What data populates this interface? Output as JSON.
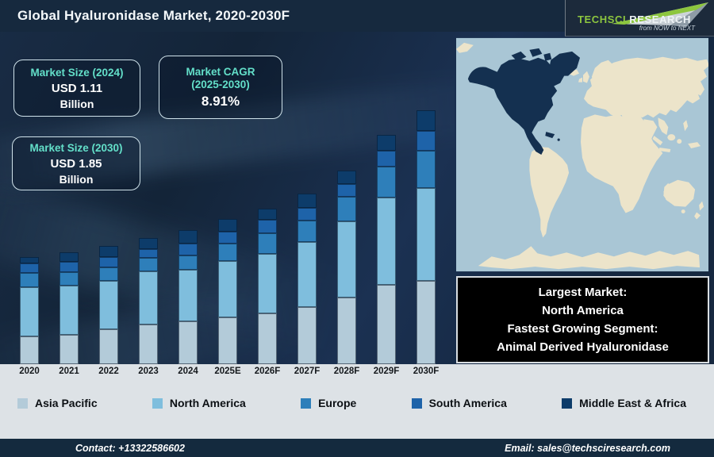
{
  "title": "Global Hyaluronidase Market, 2020-2030F",
  "logo": {
    "brand_part1": "TechSci",
    "brand_part2": "Research",
    "tagline": "from NOW to NEXT"
  },
  "info_boxes": {
    "size_2024": {
      "label": "Market Size (2024)",
      "value": "USD 1.11",
      "unit": "Billion"
    },
    "cagr": {
      "label_line1": "Market CAGR",
      "label_line2": "(2025-2030)",
      "value": "8.91%"
    },
    "size_2030": {
      "label": "Market Size (2030)",
      "value": "USD 1.85",
      "unit": "Billion"
    }
  },
  "highlight_box": {
    "lines": [
      "Largest Market:",
      "North America",
      "Fastest Growing Segment:",
      "Animal Derived Hyaluronidase"
    ]
  },
  "footer": {
    "contact": "Contact: +13322586602",
    "email": "Email: sales@techsciresearch.com"
  },
  "map": {
    "highlight_region": "North America",
    "ocean_color": "#a9c6d5",
    "land_color": "#ece4ca",
    "highlight_color": "#143050"
  },
  "colors": {
    "accent_teal": "#63dfc9",
    "brand_green": "#8dc63f",
    "title_bar": "#16293e",
    "panel_light": "#dde2e6",
    "footer_bar": "#142a3e",
    "highlight_box_bg": "#000000"
  },
  "chart_data": {
    "type": "stacked-bar",
    "title": "Global Hyaluronidase Market, 2020-2030F",
    "categories": [
      "2020",
      "2021",
      "2022",
      "2023",
      "2024",
      "2025E",
      "2026F",
      "2027F",
      "2028F",
      "2029F",
      "2030F"
    ],
    "unit": "relative height (no numeric axis shown on chart)",
    "legend_position": "bottom",
    "grid": false,
    "series": [
      {
        "name": "Asia Pacific",
        "color": "#b3cbd9",
        "values": [
          35,
          37,
          44,
          50,
          54,
          59,
          64,
          72,
          84,
          100,
          105
        ]
      },
      {
        "name": "North America",
        "color": "#7fbedd",
        "values": [
          62,
          62,
          61,
          67,
          65,
          71,
          75,
          82,
          96,
          110,
          117
        ]
      },
      {
        "name": "Europe",
        "color": "#2e7fba",
        "values": [
          18,
          17,
          17,
          17,
          18,
          22,
          26,
          27,
          31,
          39,
          47
        ]
      },
      {
        "name": "South America",
        "color": "#1e63a9",
        "values": [
          12,
          13,
          13,
          11,
          15,
          15,
          17,
          16,
          16,
          20,
          25
        ]
      },
      {
        "name": "Middle East & Africa",
        "color": "#0d3c6a",
        "values": [
          8,
          12,
          14,
          14,
          17,
          16,
          14,
          18,
          17,
          20,
          26
        ]
      }
    ],
    "stats": {
      "market_size_2024": "USD 1.11 Billion",
      "market_size_2030": "USD 1.85 Billion",
      "cagr_2025_2030": "8.91%"
    }
  }
}
